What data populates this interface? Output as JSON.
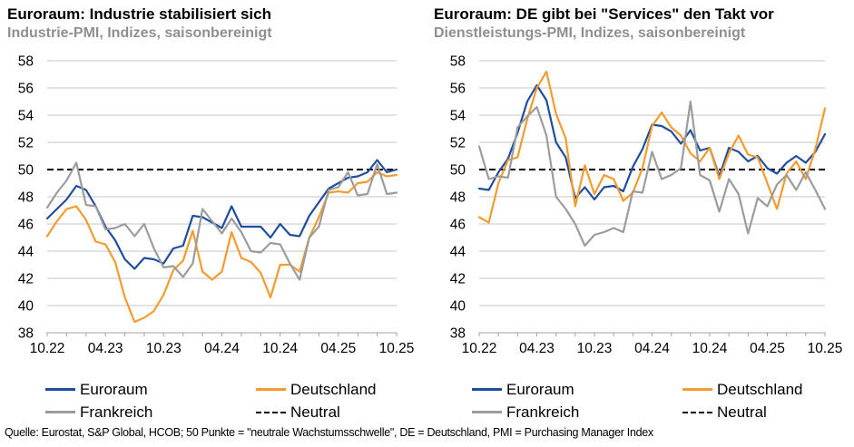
{
  "source": "Quelle: Eurostat, S&P Global, HCOB; 50 Punkte = \"neutrale Wachstumsschwelle\", DE = Deutschland, PMI = Purchasing Manager Index",
  "style": {
    "grid_color": "#C6C6C6",
    "axis_color": "#A0A0A0",
    "neutral_color": "#000000",
    "subtitle_color": "#8F8F8F",
    "euroraum_color": "#1F4E9E",
    "deutschland_color": "#F49B2E",
    "frankreich_color": "#9C9C9C"
  },
  "chart_data": [
    {
      "type": "line",
      "title": "Euroraum: Industrie stabilisiert sich",
      "subtitle": "Industrie-PMI, Indizes, saisonbereinigt",
      "x_tick_labels": [
        "10.22",
        "04.23",
        "10.23",
        "04.24",
        "10.24",
        "04.25",
        "10.25"
      ],
      "ylim": [
        38,
        58
      ],
      "ytick_step": 2,
      "grid": true,
      "neutral_level": 50,
      "series": [
        {
          "name": "Euroraum",
          "color": "#1F4E9E",
          "values": [
            46.4,
            47.1,
            47.8,
            48.8,
            48.5,
            47.3,
            45.8,
            44.8,
            43.4,
            42.7,
            43.5,
            43.4,
            43.1,
            44.2,
            44.4,
            46.6,
            46.5,
            46.1,
            45.7,
            47.3,
            45.8,
            45.8,
            45.8,
            45.0,
            46.0,
            45.2,
            45.1,
            46.6,
            47.6,
            48.6,
            49.0,
            49.4,
            49.5,
            49.8,
            50.7,
            49.8,
            50.0
          ]
        },
        {
          "name": "Deutschland",
          "color": "#F49B2E",
          "values": [
            45.1,
            46.2,
            47.1,
            47.3,
            46.3,
            44.7,
            44.5,
            43.2,
            40.6,
            38.8,
            39.1,
            39.6,
            40.8,
            42.6,
            43.3,
            45.5,
            42.5,
            41.9,
            42.5,
            45.4,
            43.5,
            43.2,
            42.4,
            40.6,
            43.0,
            43.0,
            42.5,
            45.0,
            46.5,
            48.3,
            48.4,
            48.3,
            49.0,
            49.1,
            49.8,
            49.5,
            49.6
          ]
        },
        {
          "name": "Frankreich",
          "color": "#9C9C9C",
          "values": [
            47.2,
            48.3,
            49.2,
            50.5,
            47.4,
            47.3,
            45.6,
            45.7,
            46.0,
            45.1,
            46.0,
            44.2,
            42.8,
            42.9,
            42.1,
            43.1,
            47.1,
            46.2,
            45.3,
            46.4,
            45.4,
            44.0,
            43.9,
            44.6,
            44.5,
            43.1,
            41.9,
            45.0,
            45.8,
            48.5,
            48.7,
            49.8,
            48.1,
            48.2,
            50.4,
            48.2,
            48.3
          ]
        },
        {
          "name": "Neutral",
          "color": "#000000",
          "dashed": true,
          "level": 50
        }
      ]
    },
    {
      "type": "line",
      "title": "Euroraum: DE gibt bei \"Services\" den Takt vor",
      "subtitle": "Dienstleistungs-PMI, Indizes, saisonbereinigt",
      "x_tick_labels": [
        "10.22",
        "04.23",
        "10.23",
        "04.24",
        "10.24",
        "04.25",
        "10.25"
      ],
      "ylim": [
        38,
        58
      ],
      "ytick_step": 2,
      "grid": true,
      "neutral_level": 50,
      "series": [
        {
          "name": "Euroraum",
          "color": "#1F4E9E",
          "values": [
            48.6,
            48.5,
            49.8,
            50.8,
            52.7,
            55.0,
            56.2,
            55.1,
            52.0,
            50.9,
            47.9,
            48.7,
            47.8,
            48.7,
            48.8,
            48.4,
            50.2,
            51.5,
            53.3,
            53.2,
            52.8,
            51.9,
            52.9,
            51.4,
            51.6,
            49.5,
            51.6,
            51.3,
            50.6,
            51.0,
            50.1,
            49.7,
            50.5,
            51.0,
            50.5,
            51.3,
            52.6
          ]
        },
        {
          "name": "Deutschland",
          "color": "#F49B2E",
          "values": [
            46.5,
            46.1,
            49.0,
            50.7,
            50.9,
            53.7,
            56.0,
            57.2,
            54.1,
            52.3,
            47.3,
            50.3,
            48.2,
            49.6,
            49.3,
            47.7,
            48.3,
            50.1,
            53.2,
            54.2,
            53.1,
            52.5,
            51.2,
            50.6,
            51.6,
            49.3,
            51.2,
            52.5,
            51.1,
            50.9,
            49.0,
            47.1,
            49.7,
            50.6,
            49.3,
            51.5,
            54.5
          ]
        },
        {
          "name": "Frankreich",
          "color": "#9C9C9C",
          "values": [
            51.7,
            49.3,
            49.5,
            49.4,
            53.1,
            53.9,
            54.6,
            52.5,
            48.0,
            47.1,
            46.0,
            44.4,
            45.2,
            45.4,
            45.7,
            45.4,
            48.4,
            48.3,
            51.3,
            49.3,
            49.6,
            50.1,
            55.0,
            49.6,
            49.2,
            46.9,
            49.3,
            48.2,
            45.3,
            47.9,
            47.3,
            48.9,
            49.6,
            48.5,
            49.8,
            48.5,
            47.1
          ]
        },
        {
          "name": "Neutral",
          "color": "#000000",
          "dashed": true,
          "level": 50
        }
      ]
    }
  ]
}
